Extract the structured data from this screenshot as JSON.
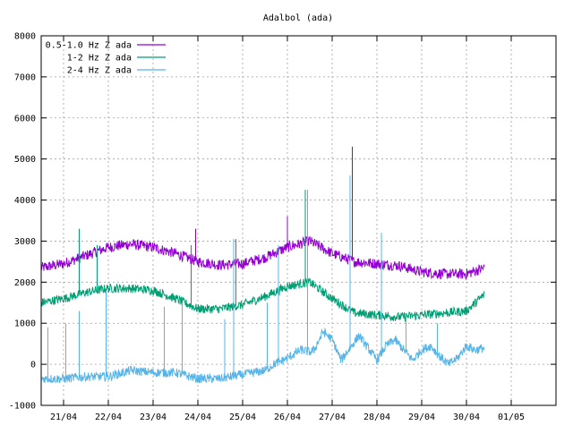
{
  "chart_data": {
    "type": "line",
    "title": "Adalbol (ada)",
    "xlabel": "",
    "ylabel": "",
    "ylim": [
      -1000,
      8000
    ],
    "yticks": [
      -1000,
      0,
      1000,
      2000,
      3000,
      4000,
      5000,
      6000,
      7000,
      8000
    ],
    "xlim": [
      20.0,
      31.5
    ],
    "xticks": [
      {
        "value": 20.5,
        "label": "21/04"
      },
      {
        "value": 21.5,
        "label": "22/04"
      },
      {
        "value": 22.5,
        "label": "23/04"
      },
      {
        "value": 23.5,
        "label": "24/04"
      },
      {
        "value": 24.5,
        "label": "25/04"
      },
      {
        "value": 25.5,
        "label": "26/04"
      },
      {
        "value": 26.5,
        "label": "27/04"
      },
      {
        "value": 27.5,
        "label": "28/04"
      },
      {
        "value": 28.5,
        "label": "29/04"
      },
      {
        "value": 29.5,
        "label": "30/04"
      },
      {
        "value": 30.5,
        "label": "01/05"
      }
    ],
    "grid": true,
    "legend_position": "top-left",
    "series": [
      {
        "name": "0.5-1.0 Hz Z ada",
        "color": "#9400D3",
        "noise": 130,
        "x": [
          20.0,
          20.5,
          21.0,
          21.5,
          22.0,
          22.5,
          23.0,
          23.5,
          24.0,
          24.5,
          25.0,
          25.5,
          26.0,
          26.5,
          27.0,
          27.5,
          28.0,
          28.5,
          29.0,
          29.5,
          29.9
        ],
        "y": [
          2350,
          2450,
          2650,
          2850,
          2930,
          2850,
          2700,
          2500,
          2420,
          2450,
          2600,
          2850,
          3000,
          2700,
          2500,
          2450,
          2400,
          2250,
          2200,
          2200,
          2350
        ],
        "spikes": [
          {
            "x": 23.45,
            "y": 3300
          },
          {
            "x": 25.5,
            "y": 3600
          },
          {
            "x": 26.95,
            "y": 5300
          }
        ]
      },
      {
        "name": "1-2 Hz Z ada",
        "color": "#009E73",
        "noise": 110,
        "x": [
          20.0,
          20.5,
          21.0,
          21.5,
          22.0,
          22.5,
          23.0,
          23.5,
          24.0,
          24.5,
          25.0,
          25.5,
          26.0,
          26.5,
          27.0,
          27.5,
          28.0,
          28.5,
          29.0,
          29.5,
          29.9
        ],
        "y": [
          1500,
          1600,
          1750,
          1850,
          1850,
          1800,
          1600,
          1350,
          1350,
          1450,
          1650,
          1900,
          2000,
          1600,
          1250,
          1200,
          1150,
          1200,
          1250,
          1300,
          1700
        ],
        "spikes": [
          {
            "x": 20.85,
            "y": 3300
          },
          {
            "x": 21.25,
            "y": 2900
          },
          {
            "x": 23.35,
            "y": 2900
          },
          {
            "x": 24.35,
            "y": 3050
          },
          {
            "x": 25.9,
            "y": 4250
          },
          {
            "x": 26.9,
            "y": 4600
          },
          {
            "x": 27.6,
            "y": 3200
          }
        ]
      },
      {
        "name": "2-4 Hz Z ada",
        "color": "#56B4E9",
        "noise": 110,
        "x": [
          20.0,
          20.5,
          21.0,
          21.5,
          22.0,
          22.5,
          23.0,
          23.5,
          24.0,
          24.5,
          25.0,
          25.2,
          25.5,
          25.8,
          26.0,
          26.1,
          26.3,
          26.5,
          26.7,
          26.9,
          27.1,
          27.3,
          27.5,
          27.7,
          27.9,
          28.1,
          28.3,
          28.5,
          28.7,
          28.9,
          29.1,
          29.3,
          29.5,
          29.7,
          29.9
        ],
        "y": [
          -350,
          -350,
          -300,
          -300,
          -150,
          -200,
          -200,
          -350,
          -350,
          -250,
          -150,
          0,
          150,
          350,
          300,
          350,
          800,
          600,
          100,
          400,
          700,
          400,
          100,
          450,
          600,
          350,
          100,
          350,
          450,
          200,
          0,
          150,
          450,
          350,
          400
        ],
        "spikes": [
          {
            "x": 20.15,
            "y": 900
          },
          {
            "x": 20.55,
            "y": 1000
          },
          {
            "x": 20.85,
            "y": 1300
          },
          {
            "x": 21.45,
            "y": 1800
          },
          {
            "x": 22.75,
            "y": 1400
          },
          {
            "x": 23.15,
            "y": 1500
          },
          {
            "x": 24.1,
            "y": 1100
          },
          {
            "x": 24.3,
            "y": 3050
          },
          {
            "x": 25.05,
            "y": 1500
          },
          {
            "x": 25.3,
            "y": 2900
          },
          {
            "x": 25.95,
            "y": 4250
          },
          {
            "x": 26.9,
            "y": 4600
          },
          {
            "x": 27.6,
            "y": 3200
          },
          {
            "x": 28.15,
            "y": 1200
          },
          {
            "x": 28.85,
            "y": 1000
          }
        ]
      }
    ]
  }
}
